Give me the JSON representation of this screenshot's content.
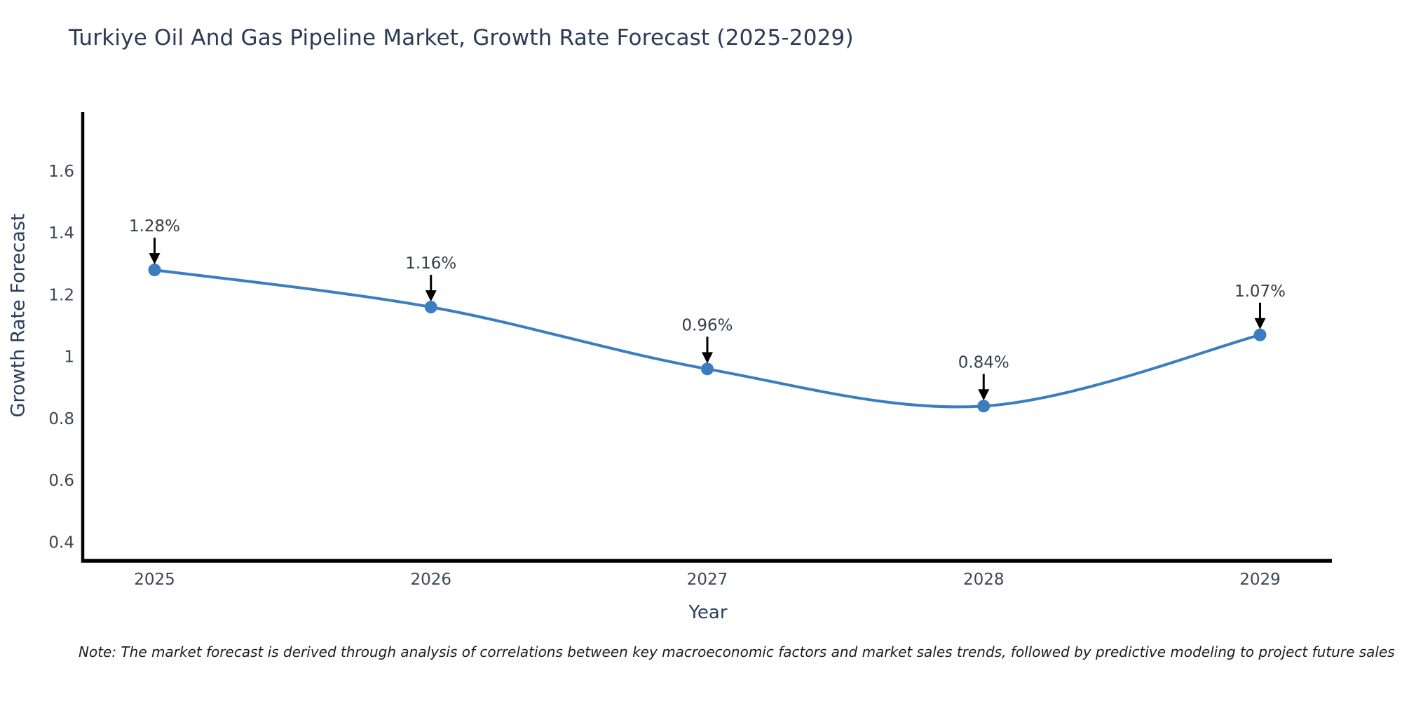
{
  "chart_data": {
    "type": "line",
    "title": "Turkiye Oil And Gas Pipeline Market, Growth Rate Forecast (2025-2029)",
    "xlabel": "Year",
    "ylabel": "Growth Rate Forecast",
    "categories": [
      2025,
      2026,
      2027,
      2028,
      2029
    ],
    "values": [
      1.28,
      1.16,
      0.96,
      0.84,
      1.07
    ],
    "point_labels": [
      "1.28%",
      "1.16%",
      "0.96%",
      "0.84%",
      "1.07%"
    ],
    "x_tick_labels": [
      "2025",
      "2026",
      "2027",
      "2028",
      "2029"
    ],
    "y_ticks": [
      0.4,
      0.6,
      0.8,
      1.0,
      1.2,
      1.4,
      1.6
    ],
    "y_tick_labels": [
      "0.4",
      "0.6",
      "0.8",
      "1",
      "1.2",
      "1.4",
      "1.6"
    ],
    "xlim": [
      2024.74,
      2029.26
    ],
    "ylim": [
      0.34,
      1.79
    ],
    "line_shape": "spline",
    "grid": false,
    "legend": false,
    "colors": {
      "line": "#3b7dbf",
      "marker": "#3b7dbf",
      "axis": "#000000",
      "arrow": "#000000",
      "title_text": "#2b3a55",
      "axis_text": "#3c4654",
      "annotation_text": "#333d49"
    }
  },
  "note": "Note: The market forecast is derived through analysis of correlations between key macroeconomic factors and market sales trends, followed by predictive modeling to project future sales"
}
